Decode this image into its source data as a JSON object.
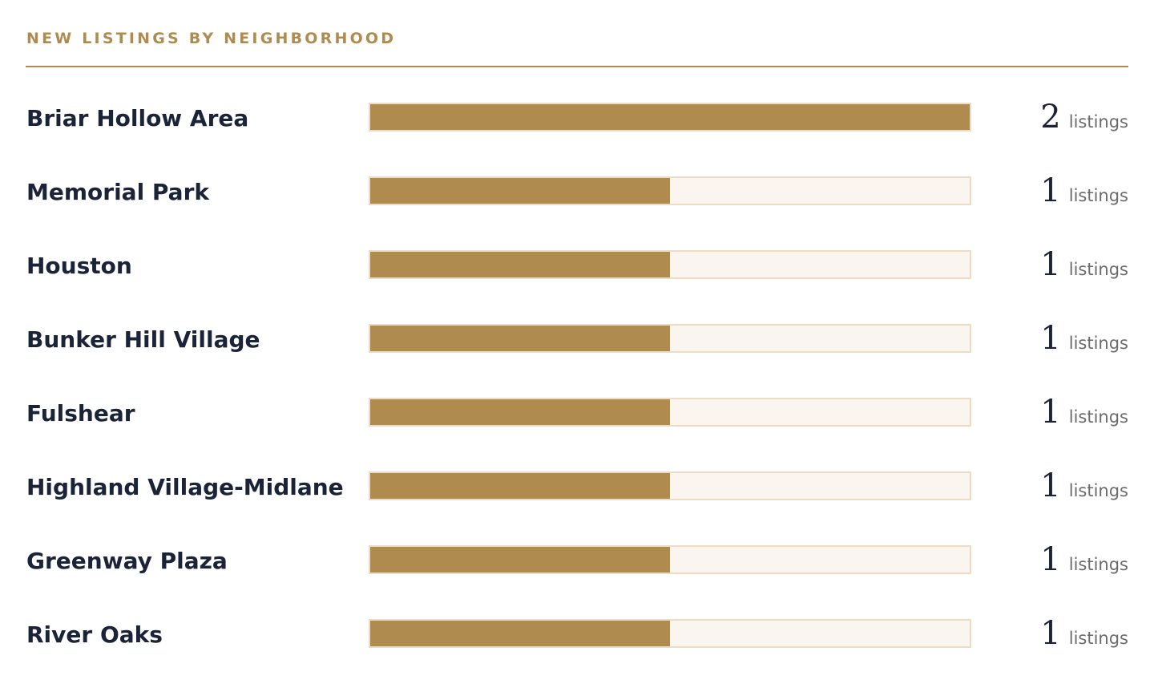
{
  "panel": {
    "title": "NEW LISTINGS BY NEIGHBORHOOD"
  },
  "colors": {
    "accent": "#b08b4f",
    "track": "#faf6ef",
    "track_border": "#ecdcc4",
    "label_text": "#1a2338",
    "unit_text": "#6b6b6b"
  },
  "chart_data": {
    "type": "bar",
    "orientation": "horizontal",
    "title": "NEW LISTINGS BY NEIGHBORHOOD",
    "categories": [
      "Briar Hollow Area",
      "Memorial Park",
      "Houston",
      "Bunker Hill Village",
      "Fulshear",
      "Highland Village-Midlane",
      "Greenway Plaza",
      "River Oaks"
    ],
    "values": [
      2,
      1,
      1,
      1,
      1,
      1,
      1,
      1
    ],
    "value_unit": "listings",
    "xlim": [
      0,
      2
    ],
    "grid": false,
    "legend": "none"
  }
}
